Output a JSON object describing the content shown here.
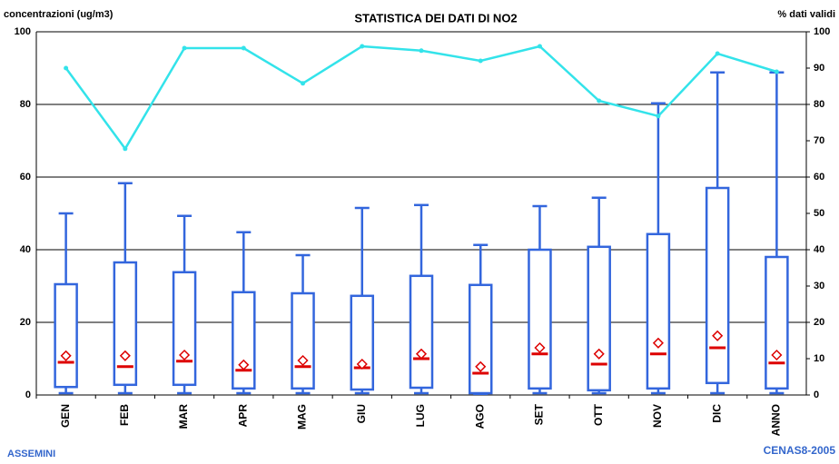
{
  "chart_data": {
    "type": "box",
    "title": "STATISTICA DEI DATI DI NO2",
    "y_label": "concentrazioni (ug/m3)",
    "y2_label": "% dati validi",
    "annotations": [
      "ASSEMINI",
      "CENAS8-2005"
    ],
    "categories": [
      "GEN",
      "FEB",
      "MAR",
      "APR",
      "MAG",
      "GIU",
      "LUG",
      "AGO",
      "SET",
      "OTT",
      "NOV",
      "DIC",
      "ANNO"
    ],
    "box_stats": {
      "min": [
        0.5,
        0.5,
        0.5,
        0.5,
        0.5,
        0.5,
        0.5,
        0.3,
        0.5,
        0.5,
        0.5,
        0.5,
        0.5
      ],
      "q1": [
        2.2,
        2.8,
        2.8,
        1.8,
        1.8,
        1.5,
        2,
        0.5,
        1.8,
        1.3,
        1.8,
        3.3,
        1.8
      ],
      "median": [
        9,
        7.8,
        9.3,
        6.8,
        7.8,
        7.5,
        10,
        6,
        11.3,
        8.5,
        11.3,
        13,
        8.8
      ],
      "q3": [
        30.5,
        36.5,
        33.8,
        28.3,
        28,
        27.3,
        32.8,
        30.3,
        40,
        40.8,
        44.3,
        57,
        38
      ],
      "max": [
        50,
        58.3,
        49.3,
        44.8,
        38.5,
        51.5,
        52.3,
        41.3,
        52,
        54.3,
        80.3,
        88.8,
        88.8
      ],
      "mean": [
        10.8,
        10.8,
        11,
        8.3,
        9.5,
        8.5,
        11.3,
        7.8,
        13,
        11.3,
        14.3,
        16.3,
        11
      ]
    },
    "box_color": "#3366dd",
    "median_color": "#dd0000",
    "mean_color": "#dd0000",
    "series": [
      {
        "color": "#33e3ea",
        "axis": "y2",
        "values": [
          90,
          67.8,
          95.5,
          95.5,
          85.8,
          96,
          94.8,
          92,
          96,
          81,
          76.8,
          94,
          89
        ]
      }
    ],
    "ylim": [
      0,
      100
    ],
    "yticks": [
      0,
      20,
      40,
      60,
      80,
      100
    ],
    "y2lim": [
      0,
      100
    ],
    "y2ticks": [
      0,
      10,
      20,
      30,
      40,
      50,
      60,
      70,
      80,
      90,
      100
    ],
    "grid": true
  }
}
